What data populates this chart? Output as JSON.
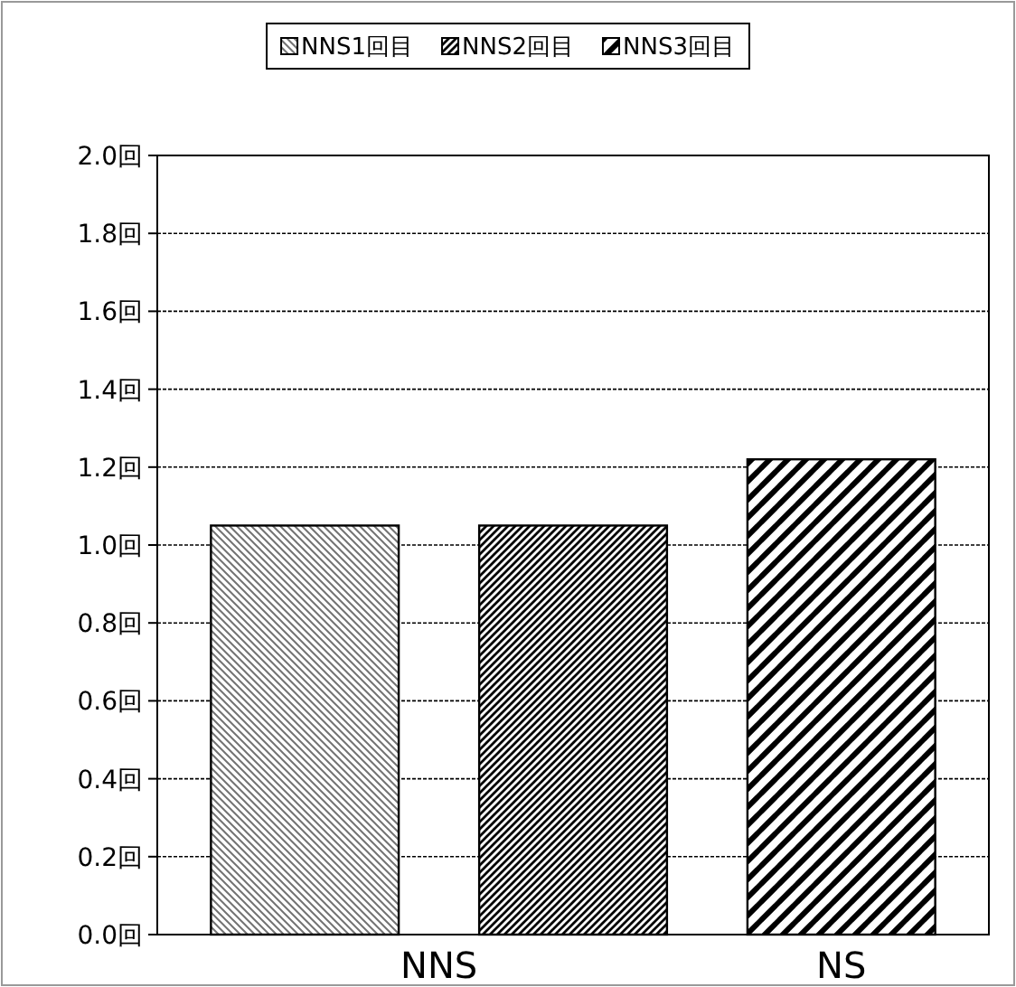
{
  "chart_data": {
    "type": "bar",
    "categories": [
      "NNS",
      "NS"
    ],
    "series": [
      {
        "name": "NNS1回目",
        "color": "#000000",
        "values": [
          1.05,
          null
        ]
      },
      {
        "name": "NNS2回目",
        "color": "#000000",
        "values": [
          1.05,
          null
        ]
      },
      {
        "name": "NNS3回目",
        "color": "#000000",
        "values": [
          null,
          1.22
        ]
      }
    ],
    "ylim": [
      0,
      2
    ],
    "yticks": [
      {
        "value": 0,
        "label": "0.0回"
      },
      {
        "value": 0.2,
        "label": "0.2回"
      },
      {
        "value": 0.4,
        "label": "0.4回"
      },
      {
        "value": 0.6,
        "label": "0.6回"
      },
      {
        "value": 0.8,
        "label": "0.8回"
      },
      {
        "value": 1,
        "label": "1.0回"
      },
      {
        "value": 1.2,
        "label": "1.2回"
      },
      {
        "value": 1.4,
        "label": "1.4回"
      },
      {
        "value": 1.6,
        "label": "1.6回"
      },
      {
        "value": 1.8,
        "label": "1.8回"
      },
      {
        "value": 2,
        "label": "2.0回"
      }
    ],
    "grid": "y",
    "legend": "top"
  }
}
